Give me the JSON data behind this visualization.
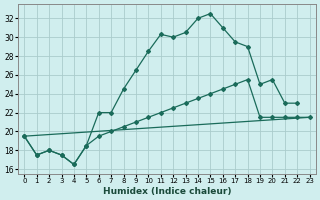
{
  "xlabel": "Humidex (Indice chaleur)",
  "ylabel": "",
  "bg_color": "#d0eeee",
  "grid_color": "#aacccc",
  "line_color": "#1a6b5a",
  "xlim": [
    -0.5,
    23.5
  ],
  "ylim": [
    15.5,
    33.5
  ],
  "yticks": [
    16,
    18,
    20,
    22,
    24,
    26,
    28,
    30,
    32
  ],
  "xticks": [
    0,
    1,
    2,
    3,
    4,
    5,
    6,
    7,
    8,
    9,
    10,
    11,
    12,
    13,
    14,
    15,
    16,
    17,
    18,
    19,
    20,
    21,
    22,
    23
  ],
  "series1_x": [
    0,
    1,
    2,
    3,
    4,
    5,
    6,
    7,
    8,
    9,
    10,
    11,
    12,
    13,
    14,
    15,
    16,
    17,
    18,
    19,
    20,
    21,
    22,
    23
  ],
  "series1_y": [
    19.5,
    17.5,
    18.0,
    17.5,
    16.5,
    18.5,
    22.0,
    22.0,
    24.5,
    26.5,
    28.5,
    30.3,
    30.0,
    30.5,
    32.0,
    32.5,
    31.0,
    29.5,
    29.0,
    25.0,
    25.5,
    23.0,
    23.0,
    null
  ],
  "series2_x": [
    0,
    1,
    2,
    3,
    4,
    5,
    6,
    7,
    8,
    9,
    10,
    11,
    12,
    13,
    14,
    15,
    16,
    17,
    18,
    19,
    20,
    21,
    22,
    23
  ],
  "series2_y": [
    19.5,
    17.5,
    18.0,
    17.5,
    16.5,
    18.5,
    19.5,
    20.0,
    20.5,
    21.0,
    21.5,
    22.0,
    22.5,
    23.0,
    23.5,
    24.0,
    24.5,
    25.0,
    25.5,
    21.5,
    21.5,
    21.5,
    21.5,
    21.5
  ]
}
